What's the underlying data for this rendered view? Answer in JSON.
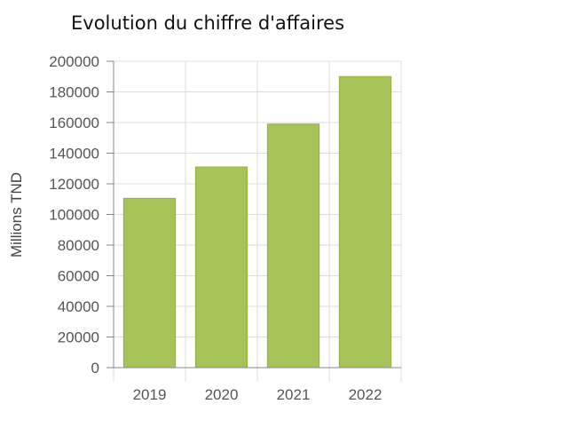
{
  "chart_data": {
    "type": "bar",
    "title": "Evolution du chiffre d'affaires",
    "xlabel": "",
    "ylabel": "Millions TND",
    "categories": [
      "2019",
      "2020",
      "2021",
      "2022"
    ],
    "series": [
      {
        "values": [
          110500,
          131000,
          159000,
          190000
        ]
      }
    ],
    "ylim": [
      0,
      200000
    ],
    "yticks": [
      0,
      20000,
      40000,
      60000,
      80000,
      100000,
      120000,
      140000,
      160000,
      180000,
      200000
    ],
    "grid": true,
    "legend": "none",
    "colors": {
      "bar": "#a6c35a",
      "bar_border": "#93b243",
      "grid": "#dddddd",
      "axis": "#888888"
    }
  }
}
